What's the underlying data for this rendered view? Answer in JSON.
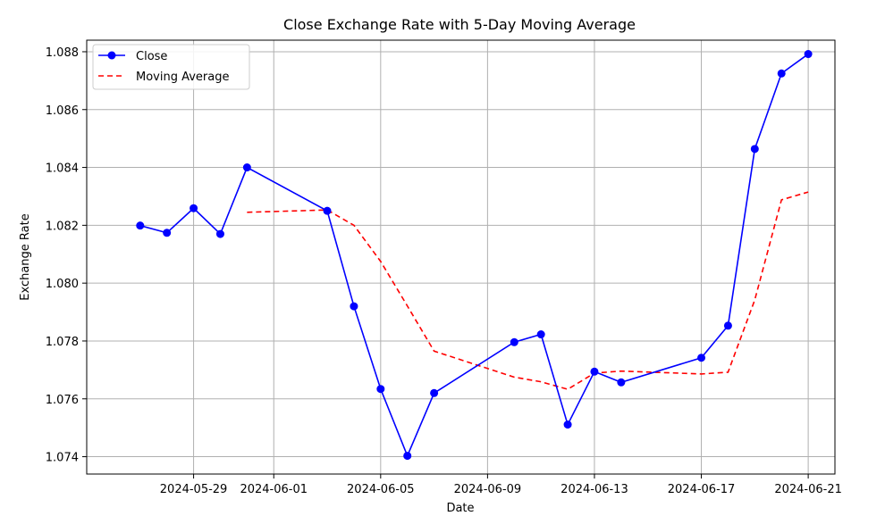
{
  "chart_data": {
    "type": "line",
    "title": "Close Exchange Rate with 5-Day Moving Average",
    "xlabel": "Date",
    "ylabel": "Exchange Rate",
    "xlim": [
      "2024-05-25",
      "2024-06-22"
    ],
    "ylim": [
      1.0734,
      1.0884
    ],
    "x_ticks": [
      "2024-05-29",
      "2024-06-01",
      "2024-06-05",
      "2024-06-09",
      "2024-06-13",
      "2024-06-17",
      "2024-06-21"
    ],
    "y_ticks": [
      "1.074",
      "1.076",
      "1.078",
      "1.080",
      "1.082",
      "1.084",
      "1.086",
      "1.088"
    ],
    "grid": true,
    "legend_position": "top-left",
    "series": [
      {
        "name": "Close",
        "color": "#0000ff",
        "style": "solid-markers",
        "x": [
          "2024-05-27",
          "2024-05-28",
          "2024-05-29",
          "2024-05-30",
          "2024-05-31",
          "2024-06-03",
          "2024-06-04",
          "2024-06-05",
          "2024-06-06",
          "2024-06-07",
          "2024-06-10",
          "2024-06-11",
          "2024-06-12",
          "2024-06-13",
          "2024-06-14",
          "2024-06-17",
          "2024-06-18",
          "2024-06-19",
          "2024-06-20",
          "2024-06-21"
        ],
        "values": [
          1.08199,
          1.08174,
          1.08259,
          1.0817,
          1.084,
          1.0825,
          1.0792,
          1.07634,
          1.07403,
          1.0762,
          1.07796,
          1.07823,
          1.07511,
          1.07694,
          1.07657,
          1.07742,
          1.07853,
          1.08464,
          1.08725,
          1.08792
        ]
      },
      {
        "name": "Moving Average",
        "color": "#ff0000",
        "style": "dashed",
        "x": [
          "2024-05-31",
          "2024-06-03",
          "2024-06-04",
          "2024-06-05",
          "2024-06-06",
          "2024-06-07",
          "2024-06-10",
          "2024-06-11",
          "2024-06-12",
          "2024-06-13",
          "2024-06-14",
          "2024-06-17",
          "2024-06-18",
          "2024-06-19",
          "2024-06-20",
          "2024-06-21"
        ],
        "values": [
          1.08245,
          1.08253,
          1.082,
          1.08075,
          1.07921,
          1.07765,
          1.07675,
          1.07659,
          1.07633,
          1.07689,
          1.07696,
          1.07686,
          1.07692,
          1.07942,
          1.08288,
          1.08315
        ]
      }
    ]
  }
}
